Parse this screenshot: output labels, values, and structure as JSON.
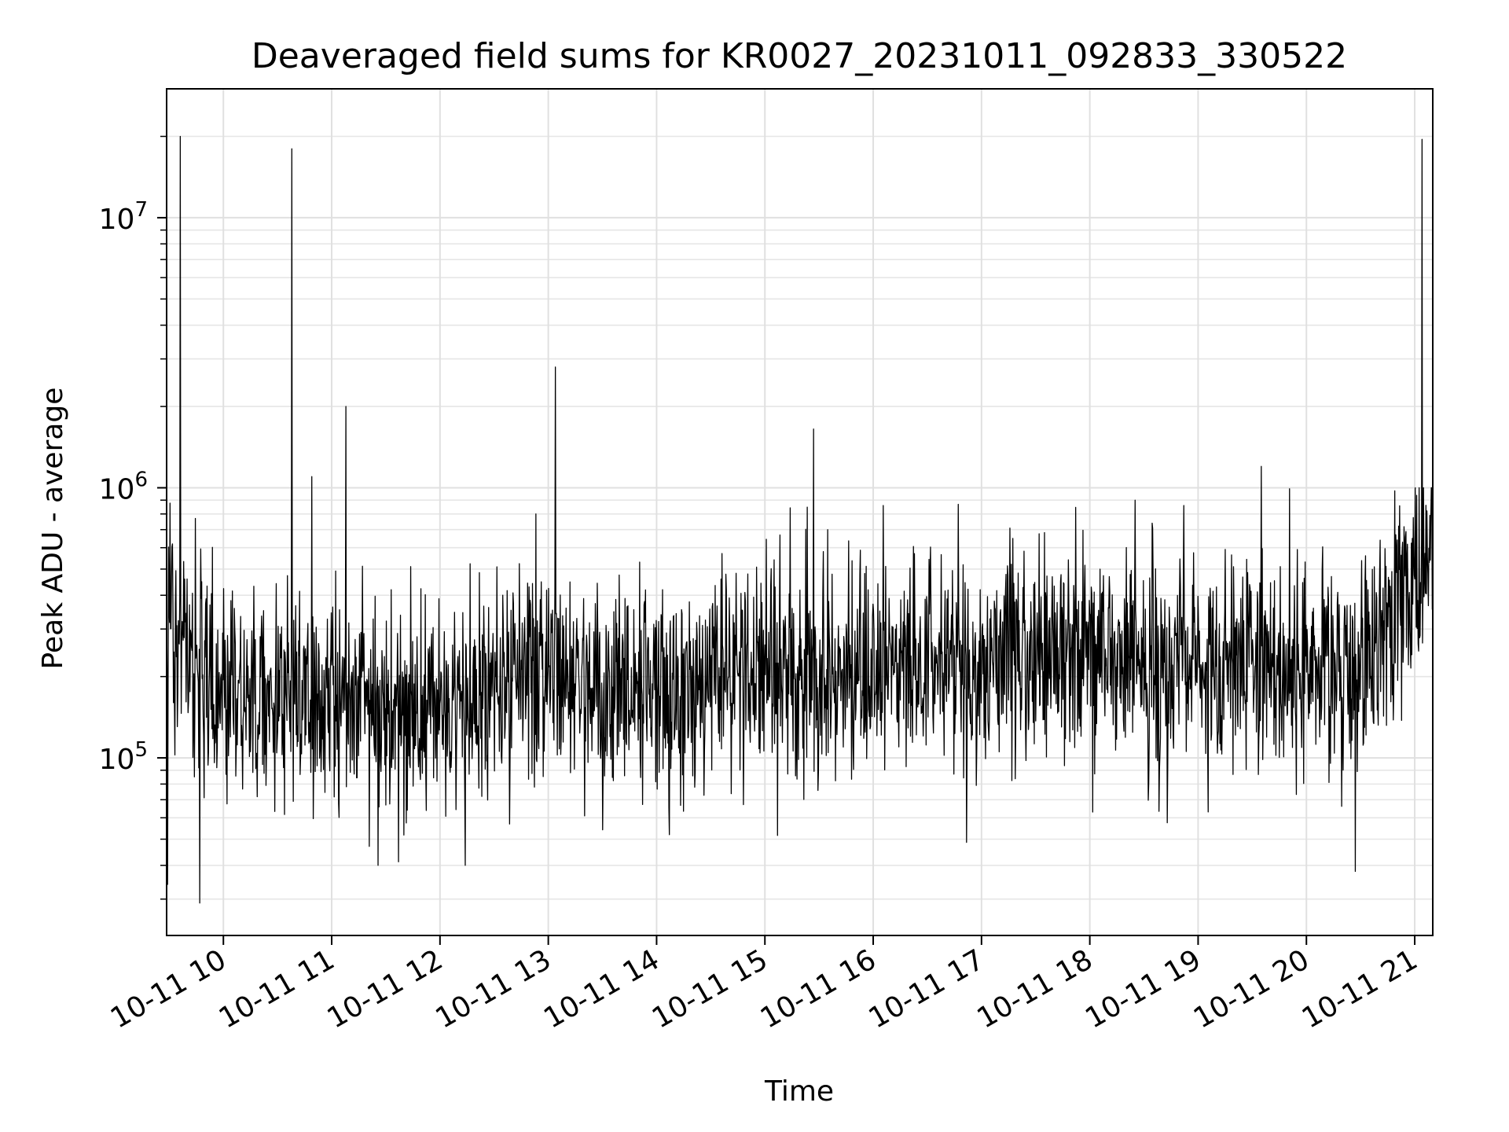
{
  "chart_data": {
    "type": "line",
    "title": "Deaveraged field sums for KR0027_20231011_092833_330522",
    "xlabel": "Time",
    "ylabel": "Peak ADU - average",
    "x_start": "2023-10-11T09:28:33",
    "x_end": "2023-10-11T21:10:00",
    "xlim": [
      "2023-10-11T09:28:33",
      "2023-10-11T21:10:00"
    ],
    "ylim": [
      22000,
      30000000
    ],
    "yscale": "log",
    "grid": true,
    "line_color": "#000000",
    "x_ticks": [
      {
        "value": "2023-10-11T10:00",
        "label": "10-11 10"
      },
      {
        "value": "2023-10-11T11:00",
        "label": "10-11 11"
      },
      {
        "value": "2023-10-11T12:00",
        "label": "10-11 12"
      },
      {
        "value": "2023-10-11T13:00",
        "label": "10-11 13"
      },
      {
        "value": "2023-10-11T14:00",
        "label": "10-11 14"
      },
      {
        "value": "2023-10-11T15:00",
        "label": "10-11 15"
      },
      {
        "value": "2023-10-11T16:00",
        "label": "10-11 16"
      },
      {
        "value": "2023-10-11T17:00",
        "label": "10-11 17"
      },
      {
        "value": "2023-10-11T18:00",
        "label": "10-11 18"
      },
      {
        "value": "2023-10-11T19:00",
        "label": "10-11 19"
      },
      {
        "value": "2023-10-11T20:00",
        "label": "10-11 20"
      },
      {
        "value": "2023-10-11T21:00",
        "label": "10-11 21"
      }
    ],
    "y_ticks": [
      {
        "value": 100000,
        "base": "10",
        "exp": "5"
      },
      {
        "value": 1000000,
        "base": "10",
        "exp": "6"
      },
      {
        "value": 10000000,
        "base": "10",
        "exp": "7"
      }
    ],
    "baseline": [
      {
        "x": "2023-10-11T09:28",
        "y": 300000
      },
      {
        "x": "2023-10-11T09:45",
        "y": 260000
      },
      {
        "x": "2023-10-11T10:00",
        "y": 175000
      },
      {
        "x": "2023-10-11T11:00",
        "y": 160000
      },
      {
        "x": "2023-10-11T12:00",
        "y": 150000
      },
      {
        "x": "2023-10-11T12:30",
        "y": 185000
      },
      {
        "x": "2023-10-11T13:00",
        "y": 200000
      },
      {
        "x": "2023-10-11T14:00",
        "y": 185000
      },
      {
        "x": "2023-10-11T15:00",
        "y": 200000
      },
      {
        "x": "2023-10-11T16:00",
        "y": 215000
      },
      {
        "x": "2023-10-11T17:00",
        "y": 230000
      },
      {
        "x": "2023-10-11T18:00",
        "y": 225000
      },
      {
        "x": "2023-10-11T19:00",
        "y": 230000
      },
      {
        "x": "2023-10-11T20:00",
        "y": 220000
      },
      {
        "x": "2023-10-11T20:40",
        "y": 250000
      },
      {
        "x": "2023-10-11T20:50",
        "y": 430000
      },
      {
        "x": "2023-10-11T21:10",
        "y": 550000
      }
    ],
    "spikes": [
      {
        "x": "2023-10-11T09:29",
        "y": 34000
      },
      {
        "x": "2023-10-11T09:36",
        "y": 20000000
      },
      {
        "x": "2023-10-11T09:47",
        "y": 29000
      },
      {
        "x": "2023-10-11T10:38",
        "y": 18000000
      },
      {
        "x": "2023-10-11T10:49",
        "y": 1100000
      },
      {
        "x": "2023-10-11T11:08",
        "y": 2000000
      },
      {
        "x": "2023-10-11T12:53",
        "y": 800000
      },
      {
        "x": "2023-10-11T13:04",
        "y": 2800000
      },
      {
        "x": "2023-10-11T15:27",
        "y": 1650000
      },
      {
        "x": "2023-10-11T19:35",
        "y": 1200000
      },
      {
        "x": "2023-10-11T20:27",
        "y": 38000
      },
      {
        "x": "2023-10-11T21:04",
        "y": 19500000
      }
    ]
  }
}
